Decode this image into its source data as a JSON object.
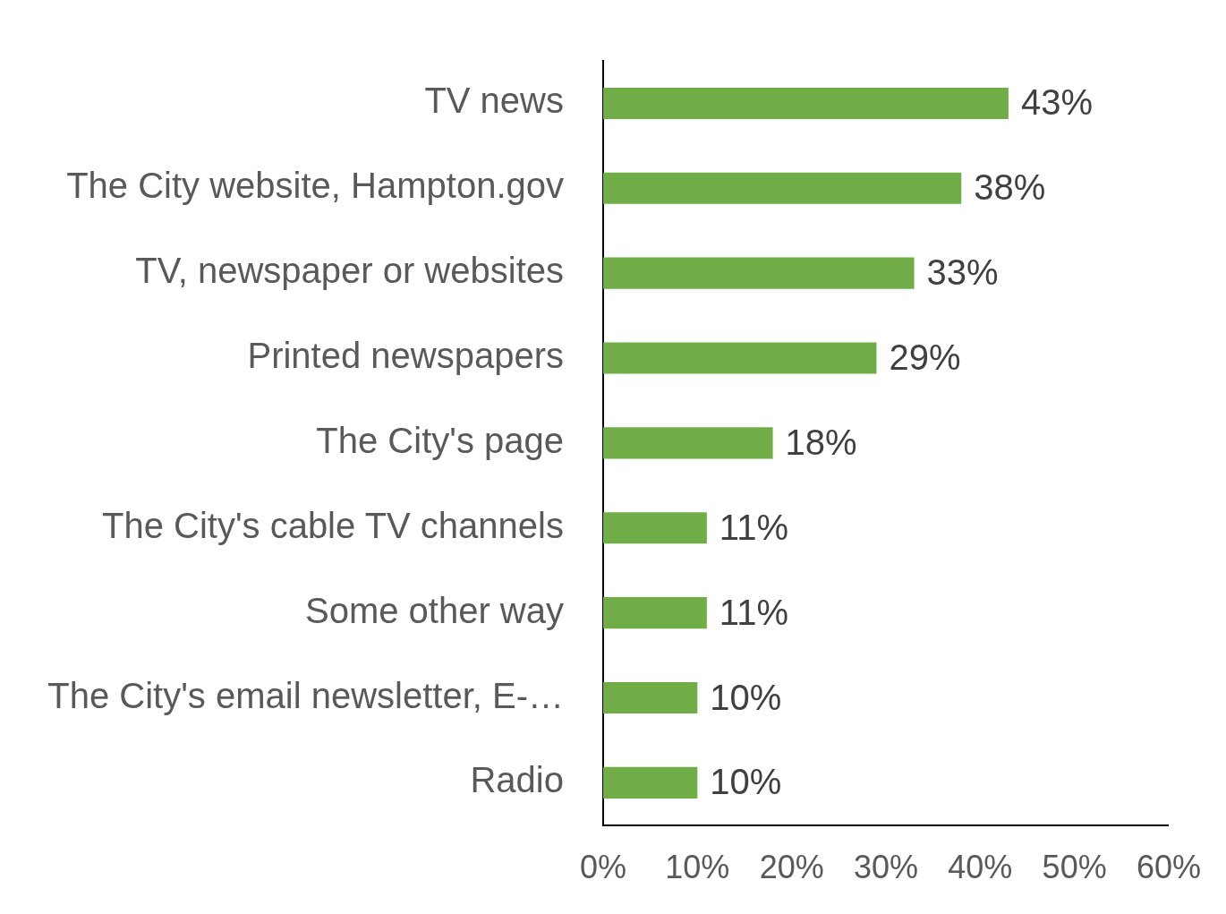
{
  "chart_data": {
    "type": "bar",
    "orientation": "horizontal",
    "categories": [
      "TV news",
      "The City website, Hampton.gov",
      "TV, newspaper or websites",
      "Printed newspapers",
      "The City's page",
      "The City's cable TV channels",
      "Some other way",
      "The City's email newsletter, E-…",
      "Radio"
    ],
    "values": [
      43,
      38,
      33,
      29,
      18,
      11,
      11,
      10,
      10
    ],
    "value_labels": [
      "43%",
      "38%",
      "33%",
      "29%",
      "18%",
      "11%",
      "11%",
      "10%",
      "10%"
    ],
    "color": "#70ad47",
    "xlim": [
      0,
      60
    ],
    "xticks": [
      {
        "value": 0,
        "label": "0%"
      },
      {
        "value": 10,
        "label": "10%"
      },
      {
        "value": 20,
        "label": "20%"
      },
      {
        "value": 30,
        "label": "30%"
      },
      {
        "value": 40,
        "label": "40%"
      },
      {
        "value": 50,
        "label": "50%"
      },
      {
        "value": 60,
        "label": "60%"
      }
    ],
    "grid": false,
    "legend": false
  }
}
